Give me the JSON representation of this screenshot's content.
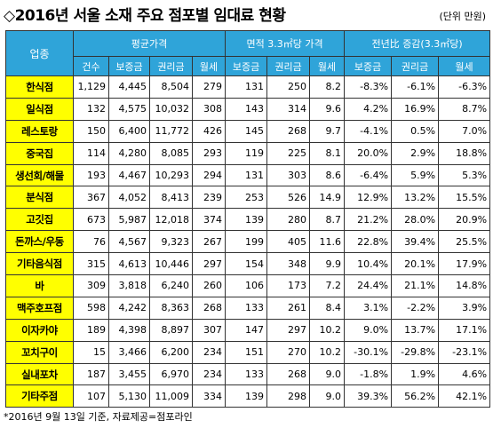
{
  "title": "◇2016년 서울 소재 주요 점포별 임대료 현황",
  "unit_note": "(단위 만원)",
  "header": {
    "corner": "업종",
    "group_avg": "평균가격",
    "group_area": "면적 3.3㎡당 가격",
    "group_change": "전년比 증감(3.3㎡당)",
    "sub": [
      "건수",
      "보증금",
      "권리금",
      "월세",
      "보증금",
      "권리금",
      "월세",
      "보증금",
      "권리금",
      "월세"
    ]
  },
  "rows": [
    {
      "name": "한식점",
      "cells": [
        "1,129",
        "4,445",
        "8,504",
        "279",
        "131",
        "250",
        "8.2",
        "-8.3%",
        "-6.1%",
        "-6.3%"
      ]
    },
    {
      "name": "일식점",
      "cells": [
        "132",
        "4,575",
        "10,032",
        "308",
        "143",
        "314",
        "9.6",
        "4.2%",
        "16.9%",
        "8.7%"
      ]
    },
    {
      "name": "레스토랑",
      "cells": [
        "150",
        "6,400",
        "11,772",
        "426",
        "145",
        "268",
        "9.7",
        "-4.1%",
        "0.5%",
        "7.0%"
      ]
    },
    {
      "name": "중국집",
      "cells": [
        "114",
        "4,280",
        "8,085",
        "293",
        "119",
        "225",
        "8.1",
        "20.0%",
        "2.9%",
        "18.8%"
      ]
    },
    {
      "name": "생선회/해물",
      "cells": [
        "193",
        "4,467",
        "10,293",
        "294",
        "131",
        "303",
        "8.6",
        "-6.4%",
        "5.9%",
        "5.3%"
      ]
    },
    {
      "name": "분식점",
      "cells": [
        "367",
        "4,052",
        "8,413",
        "239",
        "253",
        "526",
        "14.9",
        "12.9%",
        "13.2%",
        "15.5%"
      ]
    },
    {
      "name": "고깃집",
      "cells": [
        "673",
        "5,987",
        "12,018",
        "374",
        "139",
        "280",
        "8.7",
        "21.2%",
        "28.0%",
        "20.9%"
      ]
    },
    {
      "name": "돈까스/우동",
      "cells": [
        "76",
        "4,567",
        "9,323",
        "267",
        "199",
        "405",
        "11.6",
        "22.8%",
        "39.4%",
        "25.5%"
      ]
    },
    {
      "name": "기타음식점",
      "cells": [
        "315",
        "4,613",
        "10,446",
        "297",
        "154",
        "348",
        "9.9",
        "10.4%",
        "20.1%",
        "17.9%"
      ]
    },
    {
      "name": "바",
      "cells": [
        "309",
        "3,818",
        "6,240",
        "260",
        "106",
        "173",
        "7.2",
        "24.4%",
        "21.1%",
        "14.8%"
      ]
    },
    {
      "name": "맥주호프점",
      "cells": [
        "598",
        "4,242",
        "8,363",
        "268",
        "133",
        "261",
        "8.4",
        "3.1%",
        "-2.2%",
        "3.9%"
      ]
    },
    {
      "name": "이자카야",
      "cells": [
        "189",
        "4,398",
        "8,897",
        "307",
        "147",
        "297",
        "10.2",
        "9.0%",
        "13.7%",
        "17.1%"
      ]
    },
    {
      "name": "꼬치구이",
      "cells": [
        "15",
        "3,466",
        "6,200",
        "234",
        "151",
        "270",
        "10.2",
        "-30.1%",
        "-29.8%",
        "-23.1%"
      ]
    },
    {
      "name": "실내포차",
      "cells": [
        "187",
        "3,455",
        "6,970",
        "234",
        "133",
        "268",
        "9.0",
        "-1.8%",
        "1.9%",
        "4.6%"
      ]
    },
    {
      "name": "기타주점",
      "cells": [
        "107",
        "5,130",
        "11,009",
        "334",
        "139",
        "298",
        "9.0",
        "39.3%",
        "56.2%",
        "42.1%"
      ]
    }
  ],
  "footnote": "*2016년 9월 13일 기준, 자료제공=점포라인"
}
